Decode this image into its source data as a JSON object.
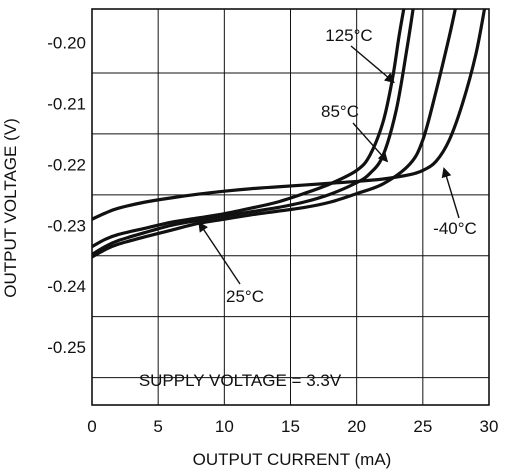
{
  "chart_data": {
    "type": "line",
    "title": "",
    "xlabel": "OUTPUT CURRENT (mA)",
    "ylabel": "OUTPUT VOLTAGE (V)",
    "xlim": [
      0,
      30
    ],
    "ylim": [
      -0.2595,
      -0.1945
    ],
    "grid": true,
    "x_ticks": [
      0,
      5,
      10,
      15,
      20,
      25,
      30
    ],
    "x_tick_labels": [
      "0",
      "5",
      "10",
      "15",
      "20",
      "25",
      "30"
    ],
    "y_ticks": [
      -0.2,
      -0.21,
      -0.22,
      -0.23,
      -0.24,
      -0.25
    ],
    "y_tick_labels": [
      "-0.20",
      "-0.21",
      "-0.22",
      "-0.23",
      "-0.24",
      "-0.25"
    ],
    "series": [
      {
        "name": "125°C",
        "x": [
          0,
          1,
          2,
          4,
          6,
          8,
          10,
          12,
          14,
          16,
          18,
          20,
          21,
          22,
          22.7,
          23.2,
          23.6
        ],
        "y": [
          -0.2335,
          -0.2323,
          -0.2315,
          -0.2305,
          -0.2295,
          -0.2288,
          -0.2281,
          -0.2272,
          -0.2262,
          -0.2248,
          -0.2232,
          -0.221,
          -0.2185,
          -0.213,
          -0.206,
          -0.199,
          -0.194
        ]
      },
      {
        "name": "85°C",
        "x": [
          0,
          1,
          2,
          4,
          6,
          8,
          10,
          12,
          14,
          16,
          18,
          20,
          21,
          22,
          23,
          23.8,
          24.3
        ],
        "y": [
          -0.2348,
          -0.2335,
          -0.2325,
          -0.2312,
          -0.23,
          -0.2292,
          -0.2285,
          -0.2278,
          -0.2271,
          -0.2262,
          -0.2249,
          -0.223,
          -0.2215,
          -0.2185,
          -0.211,
          -0.201,
          -0.194
        ]
      },
      {
        "name": "25°C",
        "x": [
          0,
          1,
          2,
          4,
          6,
          8,
          10,
          12,
          14,
          16,
          18,
          20,
          22,
          24,
          25,
          26,
          27,
          27.5
        ],
        "y": [
          -0.2352,
          -0.234,
          -0.2331,
          -0.2319,
          -0.2308,
          -0.2297,
          -0.229,
          -0.2283,
          -0.2277,
          -0.2271,
          -0.2262,
          -0.2248,
          -0.2232,
          -0.22,
          -0.216,
          -0.208,
          -0.199,
          -0.194
        ]
      },
      {
        "name": "-40°C",
        "x": [
          0,
          1,
          2,
          4,
          6,
          8,
          10,
          12,
          14,
          16,
          18,
          20,
          22,
          24,
          25,
          26,
          27,
          28,
          29,
          29.7
        ],
        "y": [
          -0.229,
          -0.228,
          -0.2272,
          -0.2262,
          -0.2255,
          -0.2249,
          -0.2244,
          -0.224,
          -0.2237,
          -0.2234,
          -0.2231,
          -0.2228,
          -0.2224,
          -0.2217,
          -0.221,
          -0.2195,
          -0.216,
          -0.21,
          -0.202,
          -0.194
        ]
      }
    ],
    "annotations": [
      {
        "text": "125°C",
        "arrow_to": [
          22.8,
          -0.2065
        ]
      },
      {
        "text": "85°C",
        "arrow_to": [
          22.3,
          -0.2195
        ]
      },
      {
        "text": "25°C",
        "arrow_to": [
          8.1,
          -0.2296
        ]
      },
      {
        "text": "-40°C",
        "arrow_to": [
          26.6,
          -0.2207
        ]
      },
      {
        "text": "SUPPLY VOLTAGE = 3.3V"
      }
    ]
  }
}
